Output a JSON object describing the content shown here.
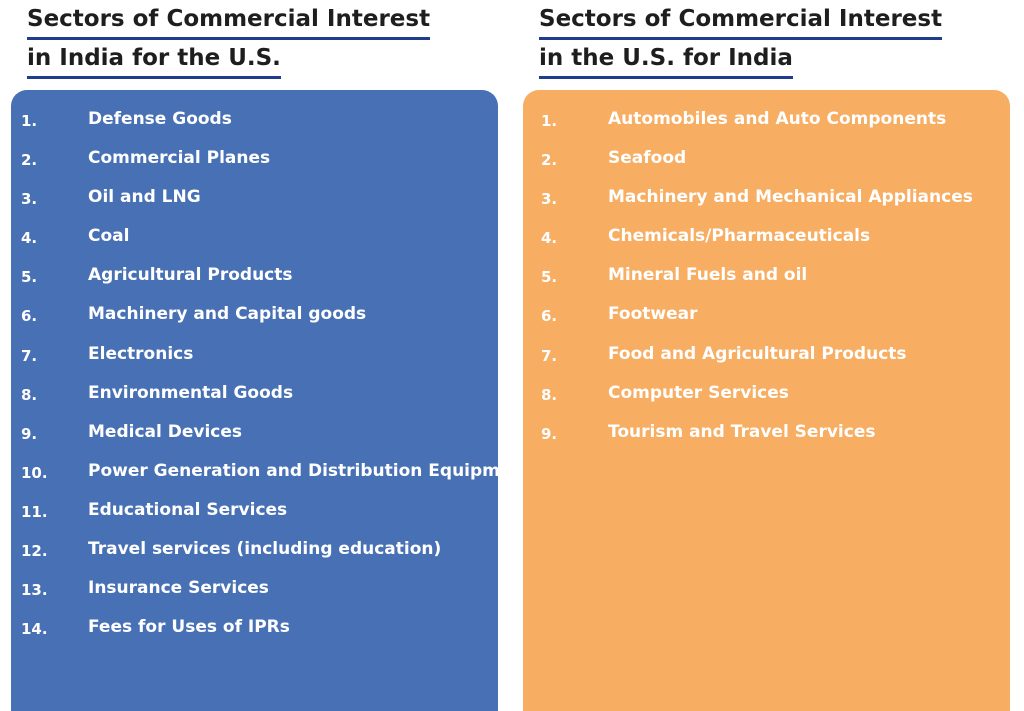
{
  "colors": {
    "left_panel": "#4870b5",
    "right_panel": "#f7ad62",
    "heading_text": "#1e1e1e",
    "heading_underline": "#1f3d8c",
    "item_text": "#ffffff"
  },
  "left": {
    "heading_line1": "Sectors of Commercial Interest",
    "heading_line2": "in India for the U.S.",
    "items": [
      {
        "num": "1.",
        "label": "Defense Goods"
      },
      {
        "num": "2.",
        "label": "Commercial Planes"
      },
      {
        "num": "3.",
        "label": "Oil and LNG"
      },
      {
        "num": "4.",
        "label": "Coal"
      },
      {
        "num": "5.",
        "label": "Agricultural Products"
      },
      {
        "num": "6.",
        "label": "Machinery and Capital goods"
      },
      {
        "num": "7.",
        "label": "Electronics"
      },
      {
        "num": "8.",
        "label": "Environmental Goods"
      },
      {
        "num": "9.",
        "label": "Medical Devices"
      },
      {
        "num": "10.",
        "label": "Power Generation and Distribution Equipment"
      },
      {
        "num": "11.",
        "label": "Educational Services"
      },
      {
        "num": "12.",
        "label": "Travel services (including education)"
      },
      {
        "num": "13.",
        "label": "Insurance Services"
      },
      {
        "num": "14.",
        "label": "Fees for Uses of IPRs"
      }
    ]
  },
  "right": {
    "heading_line1": "Sectors of Commercial Interest",
    "heading_line2": "in the U.S. for India",
    "items": [
      {
        "num": "1.",
        "label": "Automobiles and Auto Components"
      },
      {
        "num": "2.",
        "label": "Seafood"
      },
      {
        "num": "3.",
        "label": "Machinery and Mechanical Appliances"
      },
      {
        "num": "4.",
        "label": "Chemicals/Pharmaceuticals"
      },
      {
        "num": "5.",
        "label": "Mineral Fuels and oil"
      },
      {
        "num": "6.",
        "label": "Footwear"
      },
      {
        "num": "7.",
        "label": "Food and Agricultural Products"
      },
      {
        "num": "8.",
        "label": "Computer Services"
      },
      {
        "num": "9.",
        "label": "Tourism and Travel Services"
      }
    ]
  }
}
